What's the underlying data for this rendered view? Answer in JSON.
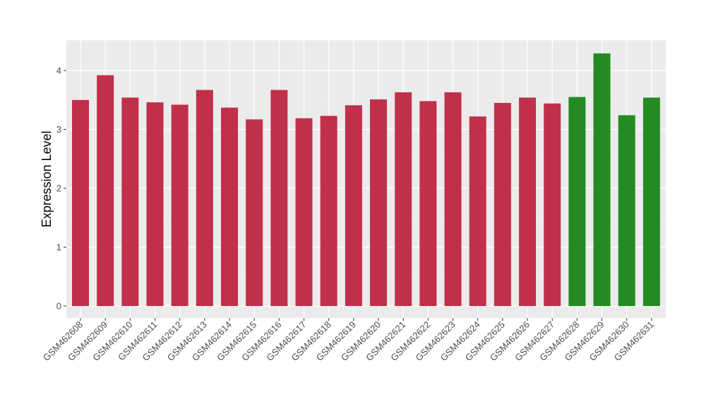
{
  "chart_data": {
    "type": "bar",
    "title": "",
    "xlabel": "",
    "ylabel": "Expression Level",
    "ylim": [
      0,
      4.5
    ],
    "yticks": [
      0,
      1,
      2,
      3,
      4
    ],
    "grid": true,
    "panel_background": "#ebebeb",
    "colors": {
      "group_a": "#c1304a",
      "group_b": "#238b22"
    },
    "categories": [
      "GSM462608",
      "GSM462609",
      "GSM462610",
      "GSM462611",
      "GSM462612",
      "GSM462613",
      "GSM462614",
      "GSM462615",
      "GSM462616",
      "GSM462617",
      "GSM462618",
      "GSM462619",
      "GSM462620",
      "GSM462621",
      "GSM462622",
      "GSM462623",
      "GSM462624",
      "GSM462625",
      "GSM462626",
      "GSM462627",
      "GSM462628",
      "GSM462629",
      "GSM462630",
      "GSM462631"
    ],
    "values": [
      3.5,
      3.92,
      3.54,
      3.46,
      3.42,
      3.67,
      3.37,
      3.17,
      3.67,
      3.19,
      3.23,
      3.41,
      3.51,
      3.63,
      3.48,
      3.63,
      3.22,
      3.45,
      3.54,
      3.44,
      3.55,
      4.29,
      3.24,
      3.54
    ],
    "groups": [
      "a",
      "a",
      "a",
      "a",
      "a",
      "a",
      "a",
      "a",
      "a",
      "a",
      "a",
      "a",
      "a",
      "a",
      "a",
      "a",
      "a",
      "a",
      "a",
      "a",
      "b",
      "b",
      "b",
      "b"
    ]
  }
}
